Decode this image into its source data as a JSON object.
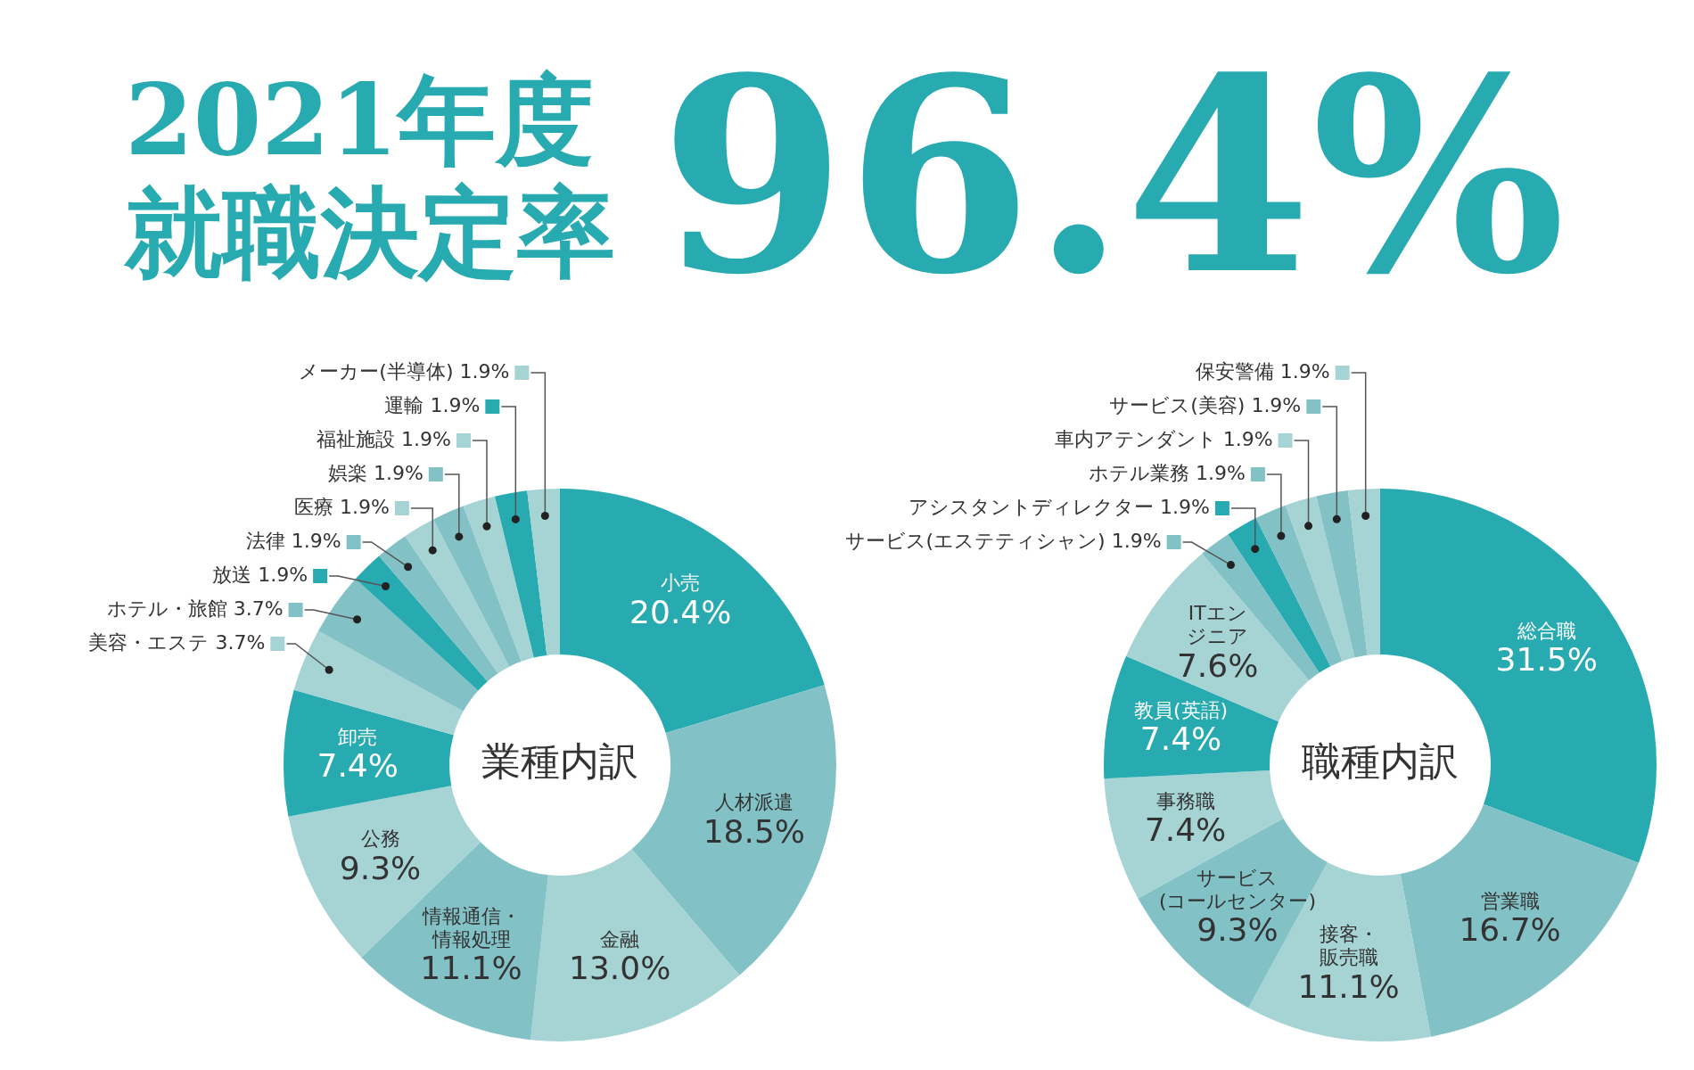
{
  "chart_data": [
    {
      "type": "other",
      "title": "2021年度就職決定率",
      "annotations": [
        "96.4%"
      ]
    },
    {
      "type": "donut",
      "title": "業種内訳",
      "categories": [
        "小売",
        "人材派遣",
        "金融",
        "情報通信・情報処理",
        "公務",
        "卸売",
        "美容・エステ",
        "ホテル・旅館",
        "放送",
        "法律",
        "医療",
        "娯楽",
        "福祉施設",
        "運輸",
        "メーカー(半導体)"
      ],
      "values": [
        20.4,
        18.5,
        13.0,
        11.1,
        9.3,
        7.4,
        3.7,
        3.7,
        1.9,
        1.9,
        1.9,
        1.9,
        1.9,
        1.9,
        1.9
      ],
      "value_labels": [
        "20.4%",
        "18.5%",
        "13.0%",
        "11.1%",
        "9.3%",
        "7.4%",
        "3.7%",
        "3.7%",
        "1.9%",
        "1.9%",
        "1.9%",
        "1.9%",
        "1.9%",
        "1.9%",
        "1.9%"
      ],
      "colors": [
        "#27aab0",
        "#82c2c6",
        "#a6d3d4",
        "#82c2c6",
        "#a6d3d4",
        "#27aab0",
        "#a6d3d4",
        "#82c2c6",
        "#27aab0",
        "#82c2c6",
        "#a6d3d4",
        "#82c2c6",
        "#a6d3d4",
        "#27aab0",
        "#a6d3d4"
      ],
      "legend": "top left"
    },
    {
      "type": "donut",
      "title": "職種内訳",
      "categories": [
        "総合職",
        "営業職",
        "接客・販売職",
        "サービス(コールセンター)",
        "事務職",
        "教員(英語)",
        "ITエンジニア",
        "サービス(エステティシャン)",
        "アシスタントディレクター",
        "ホテル業務",
        "車内アテンダント",
        "サービス(美容)",
        "保安警備"
      ],
      "values": [
        31.5,
        16.7,
        11.1,
        9.3,
        7.4,
        7.4,
        7.6,
        1.9,
        1.9,
        1.9,
        1.9,
        1.9,
        1.9
      ],
      "value_labels": [
        "31.5%",
        "16.7%",
        "11.1%",
        "9.3%",
        "7.4%",
        "7.4%",
        "7.6%",
        "1.9%",
        "1.9%",
        "1.9%",
        "1.9%",
        "1.9%",
        "1.9%"
      ],
      "colors": [
        "#27aab0",
        "#82c2c6",
        "#a6d3d4",
        "#82c2c6",
        "#a6d3d4",
        "#27aab0",
        "#a6d3d4",
        "#82c2c6",
        "#27aab0",
        "#82c2c6",
        "#a6d3d4",
        "#82c2c6",
        "#a6d3d4"
      ],
      "legend": "top left"
    }
  ]
}
